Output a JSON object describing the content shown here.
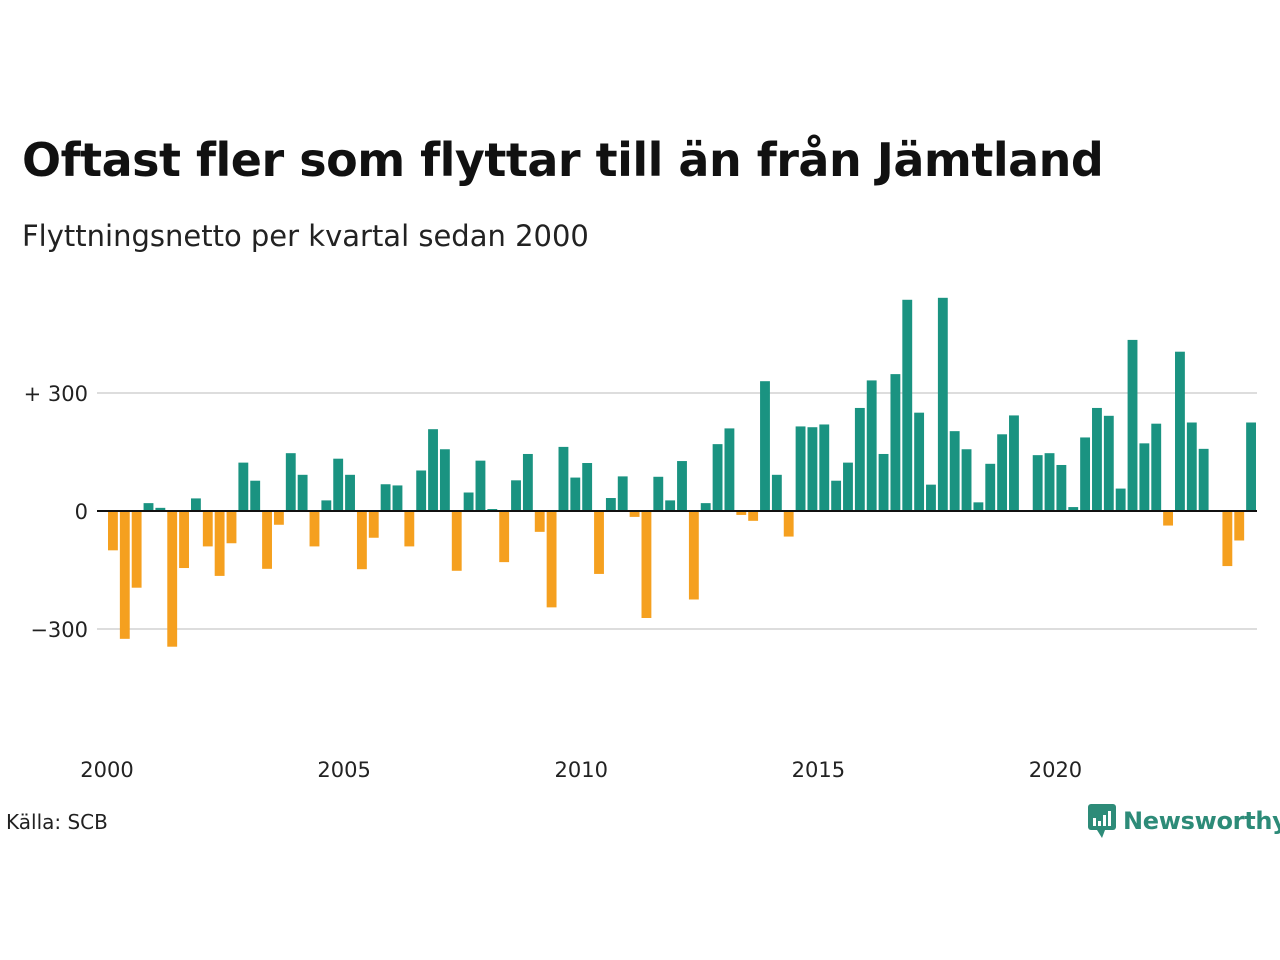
{
  "header": {
    "title": "Oftast fler som flyttar till än från Jämtland",
    "subtitle": "Flyttningsnetto per kvartal sedan 2000"
  },
  "footer": {
    "source": "Källa: SCB",
    "logo_text": "Newsworthy",
    "logo_icon": "newsworthy-chart-bubble-icon"
  },
  "colors": {
    "positive": "#1a9381",
    "negative": "#f5a01f",
    "grid": "#dddddd",
    "baseline": "#111111",
    "logo": "#2d8b78"
  },
  "chart_data": {
    "type": "bar",
    "ylim": [
      -450,
      550
    ],
    "y_ticks": [
      {
        "value": 300,
        "label": "+ 300"
      },
      {
        "value": 0,
        "label": "0"
      },
      {
        "value": -300,
        "label": "−300"
      }
    ],
    "x_ticks": [
      {
        "value": 2000,
        "label": "2000"
      },
      {
        "value": 2005,
        "label": "2005"
      },
      {
        "value": 2010,
        "label": "2010"
      },
      {
        "value": 2015,
        "label": "2015"
      },
      {
        "value": 2020,
        "label": "2020"
      }
    ],
    "grid": true,
    "xlabel": "",
    "ylabel": "",
    "categories": [
      "2000K1",
      "2000K2",
      "2000K3",
      "2000K4",
      "2001K1",
      "2001K2",
      "2001K3",
      "2001K4",
      "2002K1",
      "2002K2",
      "2002K3",
      "2002K4",
      "2003K1",
      "2003K2",
      "2003K3",
      "2003K4",
      "2004K1",
      "2004K2",
      "2004K3",
      "2004K4",
      "2005K1",
      "2005K2",
      "2005K3",
      "2005K4",
      "2006K1",
      "2006K2",
      "2006K3",
      "2006K4",
      "2007K1",
      "2007K2",
      "2007K3",
      "2007K4",
      "2008K1",
      "2008K2",
      "2008K3",
      "2008K4",
      "2009K1",
      "2009K2",
      "2009K3",
      "2009K4",
      "2010K1",
      "2010K2",
      "2010K3",
      "2010K4",
      "2011K1",
      "2011K2",
      "2011K3",
      "2011K4",
      "2012K1",
      "2012K2",
      "2012K3",
      "2012K4",
      "2013K1",
      "2013K2",
      "2013K3",
      "2013K4",
      "2014K1",
      "2014K2",
      "2014K3",
      "2014K4",
      "2015K1",
      "2015K2",
      "2015K3",
      "2015K4",
      "2016K1",
      "2016K2",
      "2016K3",
      "2016K4",
      "2017K1",
      "2017K2",
      "2017K3",
      "2017K4",
      "2018K1",
      "2018K2",
      "2018K3",
      "2018K4",
      "2019K1",
      "2019K2",
      "2019K3",
      "2019K4",
      "2020K1",
      "2020K2",
      "2020K3",
      "2020K4",
      "2021K1",
      "2021K2",
      "2021K3",
      "2021K4",
      "2022K1",
      "2022K2",
      "2022K3",
      "2022K4",
      "2023K1",
      "2023K2",
      "2023K3",
      "2023K4",
      "2024K1"
    ],
    "values": [
      -100,
      -325,
      -195,
      20,
      8,
      -345,
      -145,
      32,
      -90,
      -165,
      -82,
      123,
      77,
      -147,
      -35,
      147,
      92,
      -90,
      27,
      133,
      92,
      -148,
      -68,
      68,
      65,
      -90,
      103,
      208,
      157,
      -152,
      47,
      128,
      5,
      -130,
      78,
      145,
      -53,
      -245,
      163,
      85,
      122,
      -160,
      33,
      88,
      -15,
      -272,
      87,
      27,
      127,
      -225,
      20,
      170,
      210,
      -10,
      -25,
      330,
      92,
      -65,
      215,
      213,
      220,
      77,
      123,
      262,
      332,
      145,
      348,
      537,
      250,
      67,
      542,
      203,
      157,
      22,
      120,
      195,
      243,
      0,
      142,
      147,
      117,
      10,
      187,
      262,
      242,
      57,
      435,
      172,
      222,
      -37,
      405,
      225,
      158,
      0,
      -140,
      -75,
      225
    ]
  }
}
